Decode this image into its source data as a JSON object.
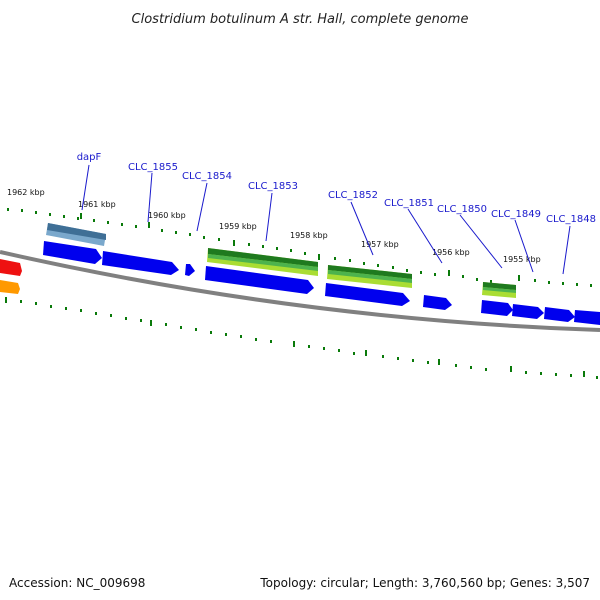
{
  "title": "Clostridium botulinum A str. Hall, complete genome",
  "footer": {
    "accession": "Accession: NC_009698",
    "summary": "Topology: circular; Length: 3,760,560 bp; Genes: 3,507"
  },
  "genes": [
    "dapF",
    "CLC_1855",
    "CLC_1854",
    "CLC_1853",
    "CLC_1852",
    "CLC_1851",
    "CLC_1850",
    "CLC_1849",
    "CLC_1848"
  ],
  "kbp_ticks": [
    "1962 kbp",
    "1961 kbp",
    "1960 kbp",
    "1959 kbp",
    "1958 kbp",
    "1957 kbp",
    "1956 kbp",
    "1955 kbp"
  ],
  "colors": {
    "cds_forward": "#0000ee",
    "backbone": "#808080",
    "tick": "#0a7a0a",
    "label": "#1a1acc",
    "dapf_feature": "#4a7fa8",
    "green_feature": "#2a8a2a",
    "lime_feature": "#aadd33",
    "red_feature": "#ee1111",
    "orange_feature": "#ff9900"
  }
}
